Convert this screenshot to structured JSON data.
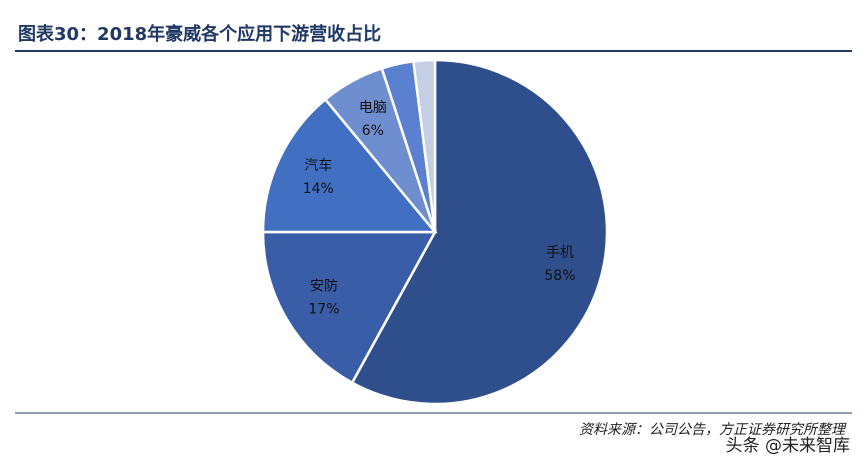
{
  "chart_data": {
    "type": "pie",
    "title": "图表30：2018年豪威各个应用下游营收占比",
    "categories": [
      "手机",
      "安防",
      "汽车",
      "电脑",
      null,
      null
    ],
    "values": [
      58,
      17,
      14,
      6,
      3,
      2
    ],
    "value_labels": [
      "58%",
      "17%",
      "14%",
      "6%",
      null,
      null
    ],
    "colors": [
      "#2f4f8c",
      "#3a5da8",
      "#4170c2",
      "#6f8ed0",
      "#5b80d0",
      "#c4cfe6"
    ],
    "source": "资料来源：公司公告，方正证券研究所整理",
    "watermark": "头条 @未来智库"
  }
}
